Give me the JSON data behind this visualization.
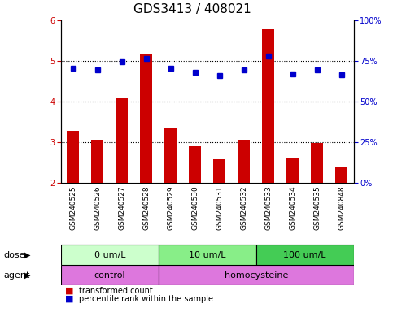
{
  "title": "GDS3413 / 408021",
  "samples": [
    "GSM240525",
    "GSM240526",
    "GSM240527",
    "GSM240528",
    "GSM240529",
    "GSM240530",
    "GSM240531",
    "GSM240532",
    "GSM240533",
    "GSM240534",
    "GSM240535",
    "GSM240848"
  ],
  "bar_values": [
    3.28,
    3.05,
    4.1,
    5.18,
    3.33,
    2.9,
    2.57,
    3.05,
    5.78,
    2.62,
    2.97,
    2.4
  ],
  "dot_values": [
    4.82,
    4.78,
    4.97,
    5.05,
    4.82,
    4.72,
    4.63,
    4.78,
    5.12,
    4.68,
    4.78,
    4.65
  ],
  "bar_color": "#cc0000",
  "dot_color": "#0000cc",
  "ylim_left": [
    2,
    6
  ],
  "ylim_right": [
    0,
    100
  ],
  "yticks_left": [
    2,
    3,
    4,
    5,
    6
  ],
  "ytick_labels_right": [
    "0%",
    "25%",
    "50%",
    "75%",
    "100%"
  ],
  "dose_groups": [
    {
      "label": "0 um/L",
      "start": 0,
      "end": 4,
      "color": "#ccffcc"
    },
    {
      "label": "10 um/L",
      "start": 4,
      "end": 8,
      "color": "#88ee88"
    },
    {
      "label": "100 um/L",
      "start": 8,
      "end": 12,
      "color": "#44cc55"
    }
  ],
  "agent_control": {
    "label": "control",
    "start": 0,
    "end": 4,
    "color": "#dd77dd"
  },
  "agent_homo": {
    "label": "homocysteine",
    "start": 4,
    "end": 12,
    "color": "#dd77dd"
  },
  "legend_bar_label": "transformed count",
  "legend_dot_label": "percentile rank within the sample",
  "bar_width": 0.5,
  "gridlines": [
    3,
    4,
    5
  ],
  "label_gray": "#c8c8c8",
  "tick_label_fontsize": 7,
  "title_fontsize": 11,
  "legend_fontsize": 8
}
